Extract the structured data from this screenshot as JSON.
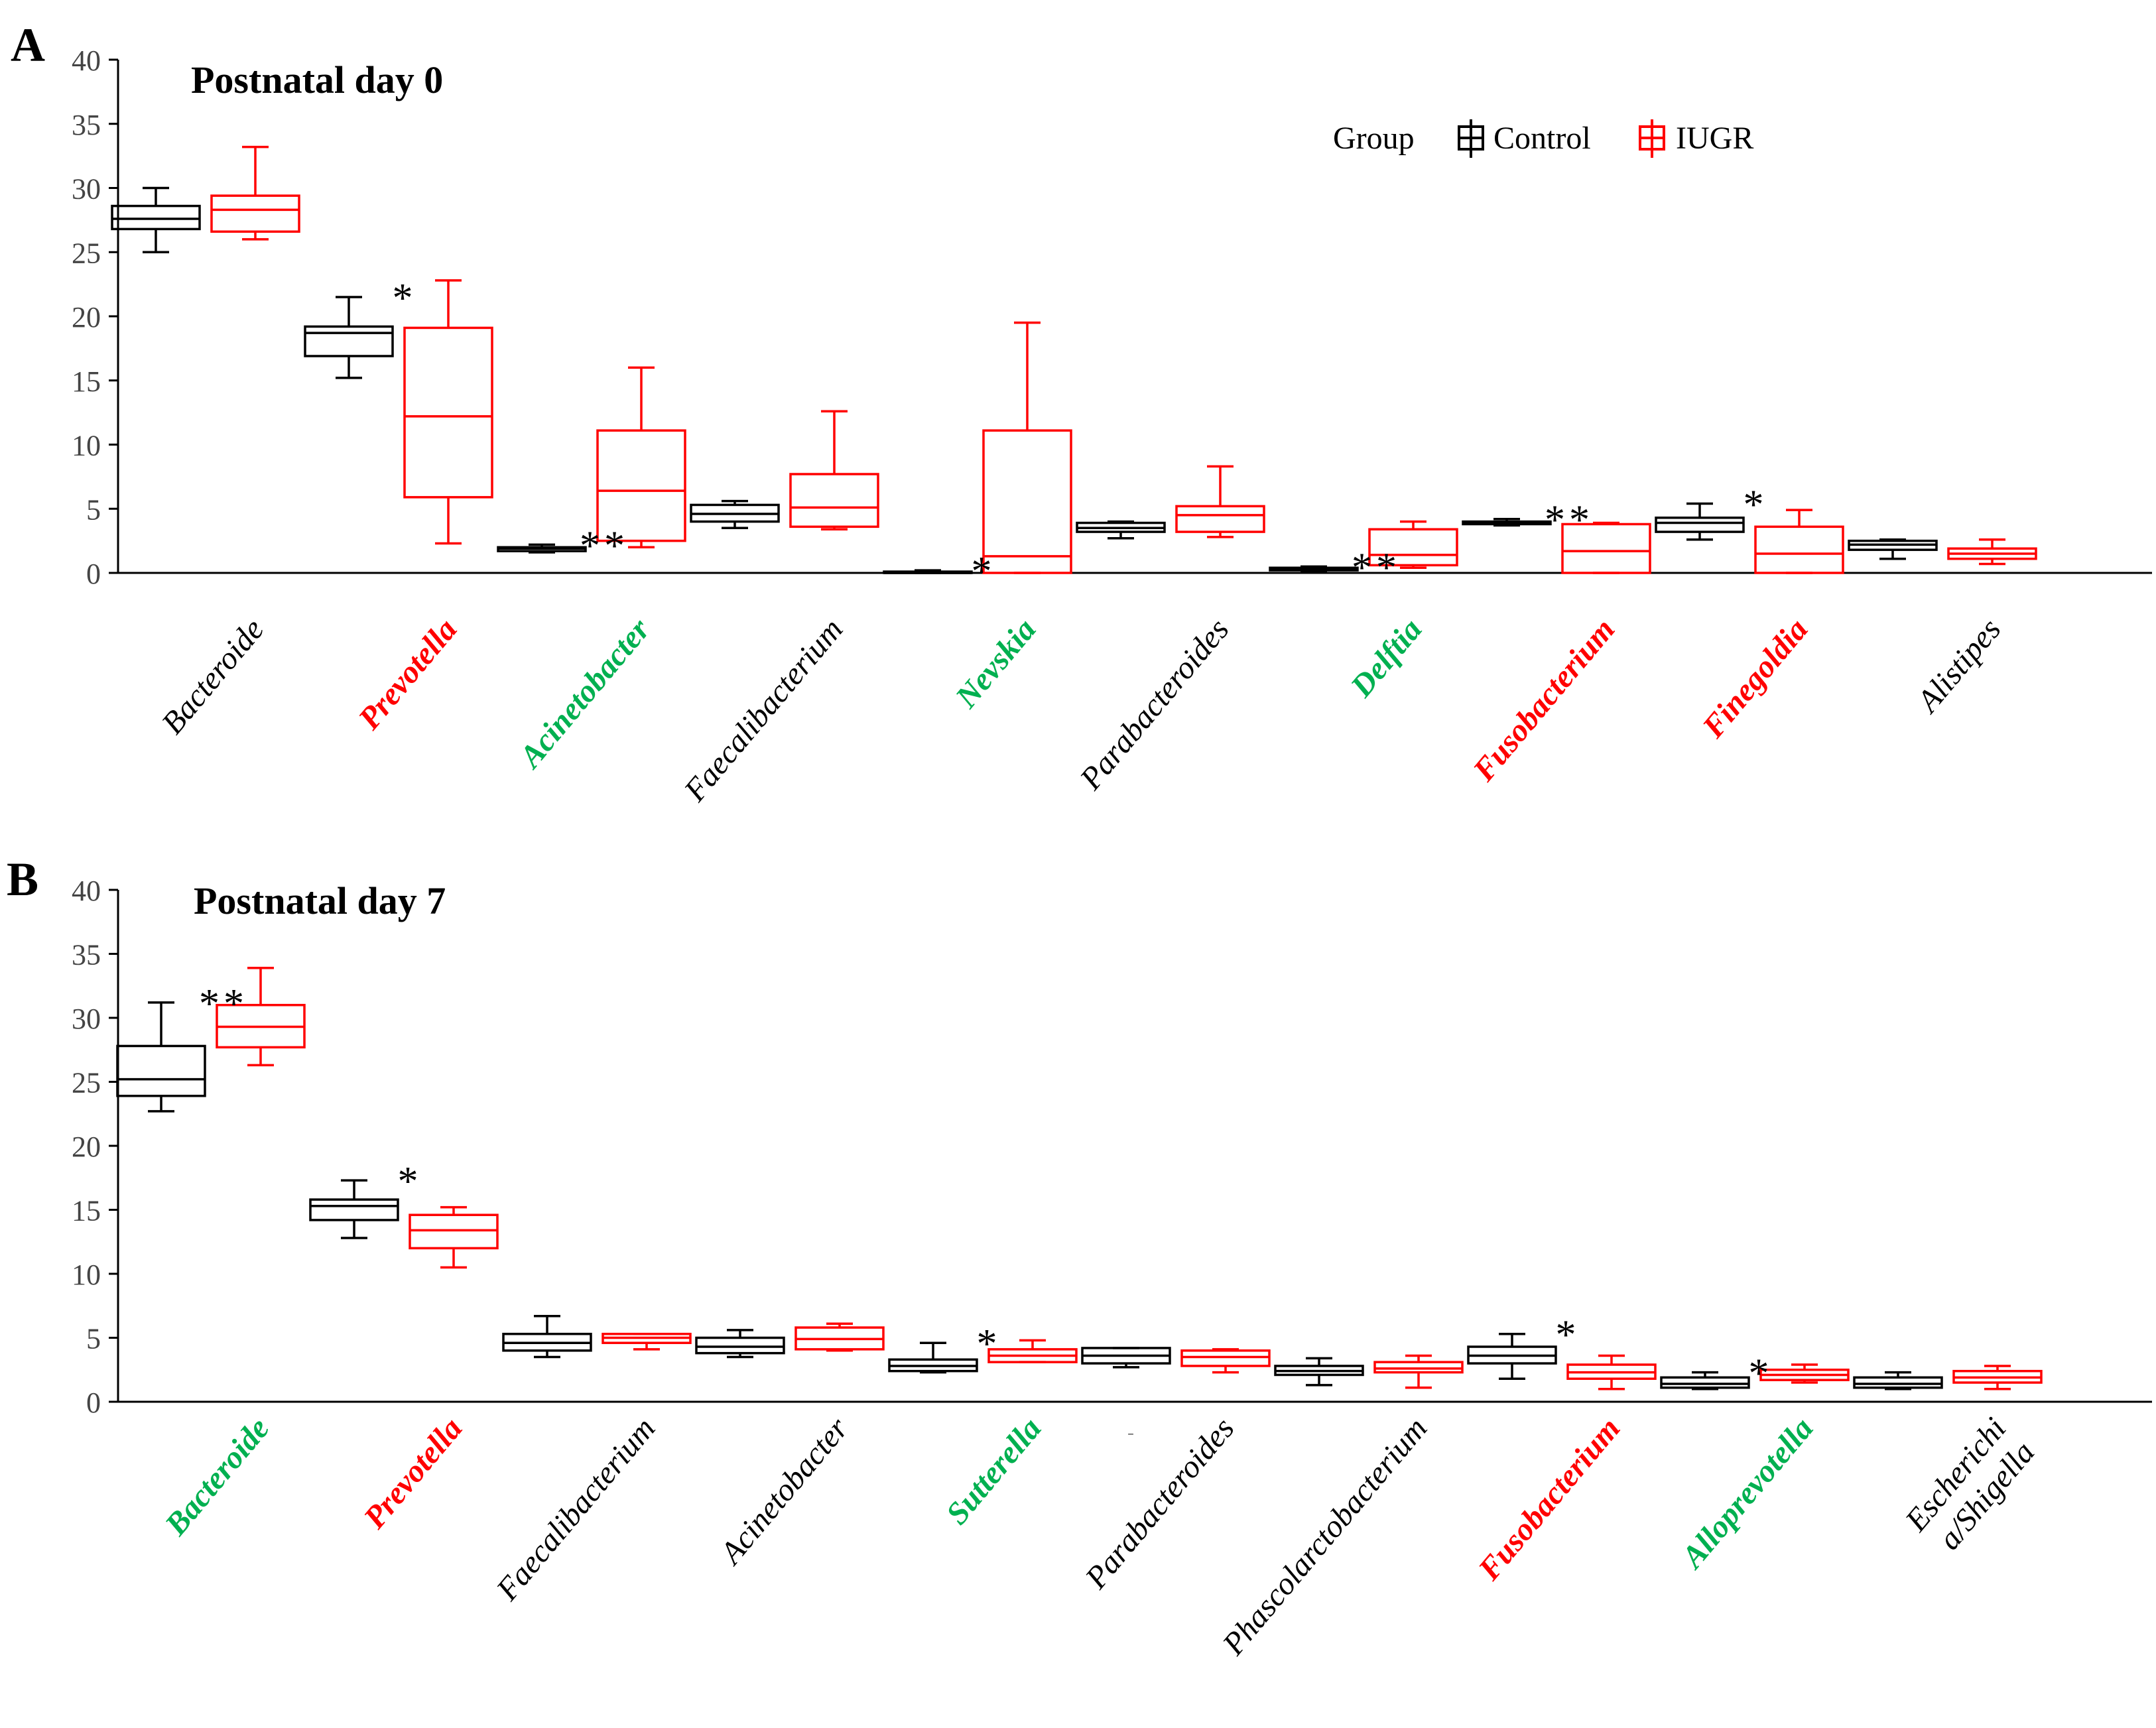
{
  "legend": {
    "title": "Group",
    "entries": [
      {
        "label": "Control",
        "color": "#000000"
      },
      {
        "label": "IUGR",
        "color": "#ff0000"
      }
    ]
  },
  "colors": {
    "black": "#000000",
    "red": "#ff0000",
    "green": "#00b050"
  },
  "chart_data": [
    {
      "panel": "A",
      "title": "Postnatal day 0",
      "type": "box",
      "ylim": [
        0,
        40
      ],
      "yticks": [
        "0",
        "5",
        "10",
        "15",
        "20",
        "25",
        "30",
        "35",
        "40"
      ],
      "series": [
        "Control",
        "IUGR"
      ],
      "categories": [
        {
          "label": "Bacteroide",
          "color": "black",
          "bold": false,
          "sig": "",
          "control": {
            "min": 25.0,
            "q1": 26.8,
            "median": 27.6,
            "q3": 28.6,
            "max": 30.0
          },
          "iugr": {
            "min": 26.0,
            "q1": 26.6,
            "median": 28.3,
            "q3": 29.4,
            "max": 33.2
          }
        },
        {
          "label": "Prevotella",
          "color": "red",
          "bold": true,
          "sig": "*",
          "control": {
            "min": 15.2,
            "q1": 16.9,
            "median": 18.7,
            "q3": 19.2,
            "max": 21.5
          },
          "iugr": {
            "min": 2.3,
            "q1": 5.9,
            "median": 12.2,
            "q3": 19.1,
            "max": 22.8
          }
        },
        {
          "label": "Acinetobacter",
          "color": "green",
          "bold": true,
          "sig": "**",
          "control": {
            "min": 1.6,
            "q1": 1.7,
            "median": 1.9,
            "q3": 2.0,
            "max": 2.2
          },
          "iugr": {
            "min": 2.0,
            "q1": 2.5,
            "median": 6.4,
            "q3": 11.1,
            "max": 16.0
          }
        },
        {
          "label": "Faecalibacterium",
          "color": "black",
          "bold": false,
          "sig": "",
          "control": {
            "min": 3.5,
            "q1": 4.0,
            "median": 4.6,
            "q3": 5.3,
            "max": 5.6
          },
          "iugr": {
            "min": 3.4,
            "q1": 3.6,
            "median": 5.1,
            "q3": 7.7,
            "max": 12.6
          }
        },
        {
          "label": "Nevskia",
          "color": "green",
          "bold": true,
          "sig": "*",
          "control": {
            "min": 0.0,
            "q1": 0.0,
            "median": 0.0,
            "q3": 0.1,
            "max": 0.2
          },
          "iugr": {
            "min": 0.0,
            "q1": 0.0,
            "median": 1.3,
            "q3": 11.1,
            "max": 19.5
          }
        },
        {
          "label": "Parabacteroides",
          "color": "black",
          "bold": false,
          "sig": "",
          "control": {
            "min": 2.7,
            "q1": 3.2,
            "median": 3.5,
            "q3": 3.9,
            "max": 4.0
          },
          "iugr": {
            "min": 2.8,
            "q1": 3.2,
            "median": 4.5,
            "q3": 5.2,
            "max": 8.3
          }
        },
        {
          "label": "Delftia",
          "color": "green",
          "bold": true,
          "sig": "**",
          "control": {
            "min": 0.1,
            "q1": 0.2,
            "median": 0.3,
            "q3": 0.4,
            "max": 0.5
          },
          "iugr": {
            "min": 0.4,
            "q1": 0.6,
            "median": 1.4,
            "q3": 3.4,
            "max": 4.0
          }
        },
        {
          "label": "Fusobacterium",
          "color": "red",
          "bold": true,
          "sig": "**",
          "control": {
            "min": 3.7,
            "q1": 3.8,
            "median": 3.9,
            "q3": 4.0,
            "max": 4.2
          },
          "iugr": {
            "min": 0.0,
            "q1": 0.0,
            "median": 1.7,
            "q3": 3.8,
            "max": 3.9
          }
        },
        {
          "label": "Finegoldia",
          "color": "red",
          "bold": true,
          "sig": "*",
          "control": {
            "min": 2.6,
            "q1": 3.2,
            "median": 3.9,
            "q3": 4.3,
            "max": 5.4
          },
          "iugr": {
            "min": 0.0,
            "q1": 0.0,
            "median": 1.5,
            "q3": 3.6,
            "max": 4.9
          }
        },
        {
          "label": "Alistipes",
          "color": "black",
          "bold": false,
          "sig": "",
          "control": {
            "min": 1.1,
            "q1": 1.8,
            "median": 2.2,
            "q3": 2.5,
            "max": 2.6
          },
          "iugr": {
            "min": 0.7,
            "q1": 1.1,
            "median": 1.5,
            "q3": 1.9,
            "max": 2.6
          }
        }
      ]
    },
    {
      "panel": "B",
      "title": "Postnatal day 7",
      "type": "box",
      "ylim": [
        0,
        40
      ],
      "yticks": [
        "0",
        "5",
        "10",
        "15",
        "20",
        "25",
        "30",
        "35",
        "40"
      ],
      "series": [
        "Control",
        "IUGR"
      ],
      "categories": [
        {
          "label": "Bacteroide",
          "color": "green",
          "bold": true,
          "sig": "**",
          "control": {
            "min": 22.7,
            "q1": 23.9,
            "median": 25.2,
            "q3": 27.8,
            "max": 31.2
          },
          "iugr": {
            "min": 26.3,
            "q1": 27.7,
            "median": 29.3,
            "q3": 31.0,
            "max": 33.9
          }
        },
        {
          "label": "Prevotella",
          "color": "red",
          "bold": true,
          "sig": "*",
          "control": {
            "min": 12.8,
            "q1": 14.2,
            "median": 15.3,
            "q3": 15.8,
            "max": 17.3
          },
          "iugr": {
            "min": 10.5,
            "q1": 12.0,
            "median": 13.4,
            "q3": 14.6,
            "max": 15.2
          }
        },
        {
          "label": "Faecalibacterium",
          "color": "black",
          "bold": false,
          "sig": "",
          "control": {
            "min": 3.5,
            "q1": 4.0,
            "median": 4.6,
            "q3": 5.3,
            "max": 6.7
          },
          "iugr": {
            "min": 4.1,
            "q1": 4.6,
            "median": 5.0,
            "q3": 5.3,
            "max": 5.3
          }
        },
        {
          "label": "Acinetobacter",
          "color": "black",
          "bold": false,
          "sig": "",
          "control": {
            "min": 3.5,
            "q1": 3.8,
            "median": 4.3,
            "q3": 5.0,
            "max": 5.6
          },
          "iugr": {
            "min": 4.0,
            "q1": 4.1,
            "median": 4.9,
            "q3": 5.8,
            "max": 6.1
          }
        },
        {
          "label": "Sutterella",
          "color": "green",
          "bold": true,
          "sig": "*",
          "control": {
            "min": 2.3,
            "q1": 2.4,
            "median": 2.8,
            "q3": 3.3,
            "max": 4.6
          },
          "iugr": {
            "min": 3.1,
            "q1": 3.1,
            "median": 3.6,
            "q3": 4.1,
            "max": 4.8
          }
        },
        {
          "label": "Parabacteroides",
          "color": "black",
          "bold": false,
          "sig": "",
          "control": {
            "min": 2.7,
            "q1": 3.0,
            "median": 3.6,
            "q3": 4.2,
            "max": 4.2
          },
          "iugr": {
            "min": 2.3,
            "q1": 2.8,
            "median": 3.5,
            "q3": 4.0,
            "max": 4.1
          }
        },
        {
          "label": "Phascolarctobacterium",
          "color": "black",
          "bold": false,
          "sig": "",
          "control": {
            "min": 1.3,
            "q1": 2.1,
            "median": 2.4,
            "q3": 2.8,
            "max": 3.4
          },
          "iugr": {
            "min": 1.1,
            "q1": 2.3,
            "median": 2.6,
            "q3": 3.1,
            "max": 3.6
          }
        },
        {
          "label": "Fusobacterium",
          "color": "red",
          "bold": true,
          "sig": "*",
          "control": {
            "min": 1.8,
            "q1": 3.0,
            "median": 3.6,
            "q3": 4.3,
            "max": 5.3
          },
          "iugr": {
            "min": 1.0,
            "q1": 1.8,
            "median": 2.3,
            "q3": 2.9,
            "max": 3.6
          }
        },
        {
          "label": "Alloprevotella",
          "color": "green",
          "bold": true,
          "sig": "*",
          "control": {
            "min": 1.0,
            "q1": 1.1,
            "median": 1.4,
            "q3": 1.9,
            "max": 2.3
          },
          "iugr": {
            "min": 1.5,
            "q1": 1.7,
            "median": 2.1,
            "q3": 2.5,
            "max": 2.9
          }
        },
        {
          "label": "Escherichi a/Shigella",
          "lines": [
            "Escherichi",
            "a/Shigella"
          ],
          "color": "black",
          "bold": false,
          "sig": "",
          "control": {
            "min": 1.0,
            "q1": 1.1,
            "median": 1.4,
            "q3": 1.9,
            "max": 2.3
          },
          "iugr": {
            "min": 1.0,
            "q1": 1.5,
            "median": 1.9,
            "q3": 2.4,
            "max": 2.8
          }
        }
      ]
    }
  ]
}
